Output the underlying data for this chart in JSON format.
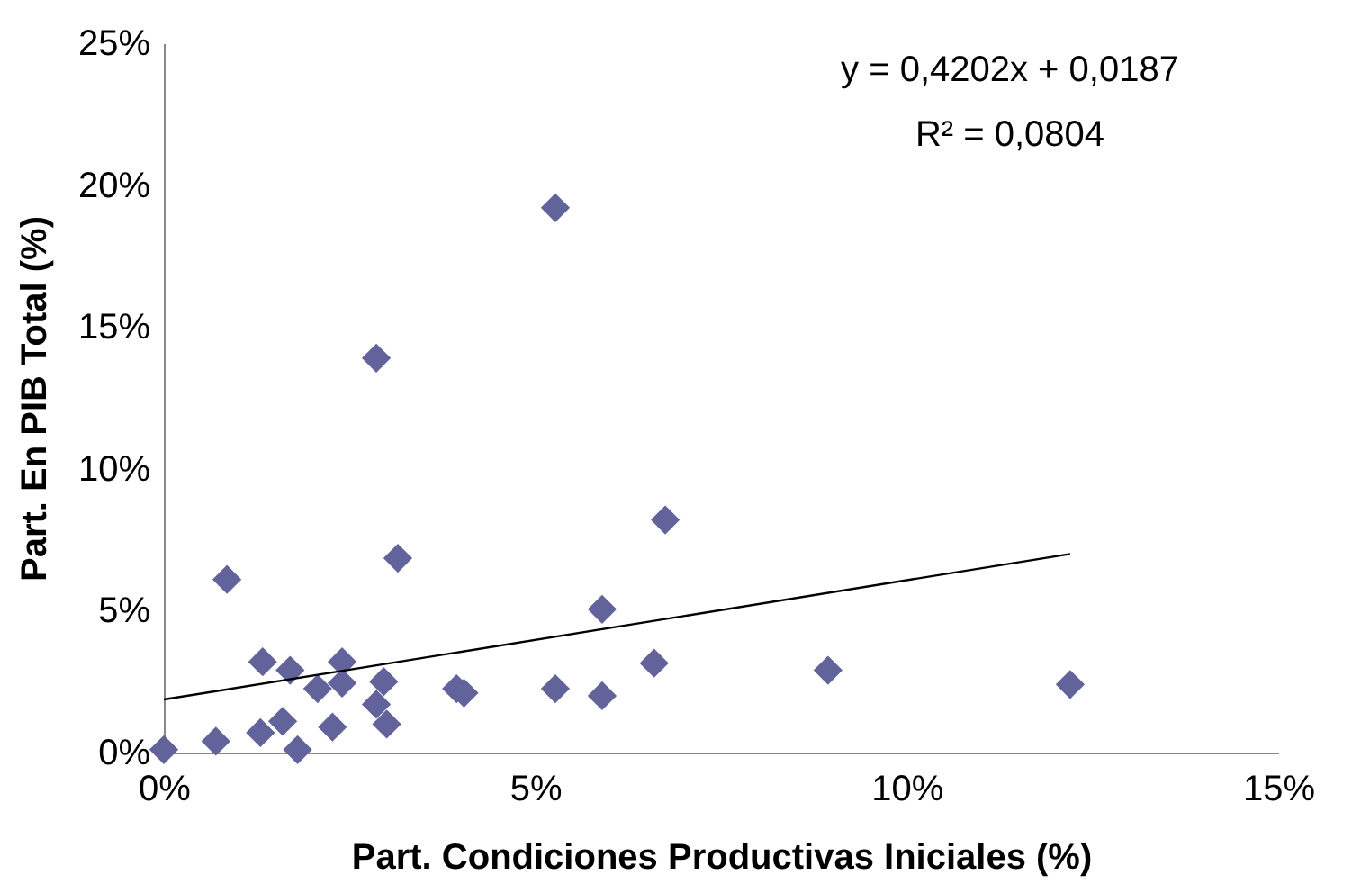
{
  "chart_data": {
    "type": "scatter",
    "xlabel": "Part. Condiciones Productivas Iniciales (%)",
    "ylabel": "Part. En PIB Total (%)",
    "xlim": [
      0,
      15
    ],
    "ylim": [
      0,
      25
    ],
    "xticks": [
      {
        "value": 0,
        "label": "0%"
      },
      {
        "value": 5,
        "label": "5%"
      },
      {
        "value": 10,
        "label": "10%"
      },
      {
        "value": 15,
        "label": "15%"
      }
    ],
    "yticks": [
      {
        "value": 0,
        "label": "0%"
      },
      {
        "value": 5,
        "label": "5%"
      },
      {
        "value": 10,
        "label": "10%"
      },
      {
        "value": 15,
        "label": "15%"
      },
      {
        "value": 20,
        "label": "20%"
      },
      {
        "value": 25,
        "label": "25%"
      }
    ],
    "grid": false,
    "marker": "diamond",
    "annotations": [
      "y = 0,4202x + 0,0187",
      "R² = 0,0804"
    ],
    "series": [
      {
        "color": "#63639b",
        "x": [
          0,
          0.7,
          0.85,
          1.33,
          1.3,
          1.7,
          1.6,
          1.8,
          2.07,
          2.27,
          2.4,
          2.4,
          3.15,
          2.96,
          2.86,
          3.0,
          3.94,
          4.04,
          5.27,
          5.9,
          5.9,
          6.6,
          5.27,
          8.94,
          12.2,
          6.75,
          2.86
        ],
        "values": [
          0.1,
          0.4,
          6.1,
          3.2,
          0.7,
          2.9,
          1.1,
          0.1,
          2.25,
          0.9,
          3.2,
          2.45,
          6.85,
          2.5,
          1.7,
          1.0,
          2.25,
          2.1,
          2.25,
          5.05,
          2.0,
          3.15,
          19.2,
          2.9,
          2.4,
          8.2,
          13.9
        ]
      },
      {
        "color": "#000000",
        "type": "line",
        "line_style": "solid",
        "marker": "none",
        "x": [
          0,
          12.2
        ],
        "values": [
          1.87,
          7.0
        ]
      }
    ]
  }
}
